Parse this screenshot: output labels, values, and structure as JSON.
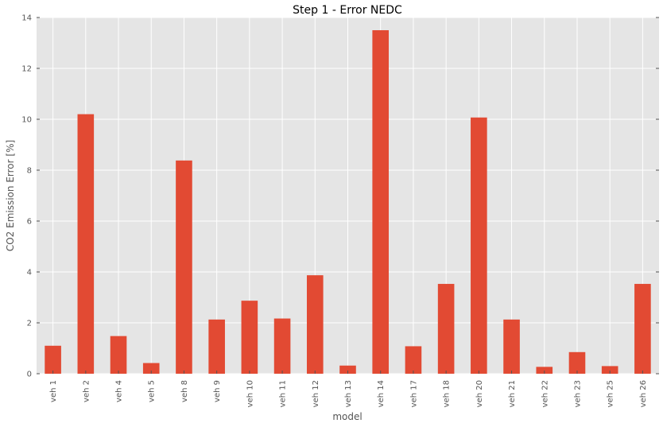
{
  "chart_data": {
    "type": "bar",
    "title": "Step 1 - Error NEDC",
    "xlabel": "model",
    "ylabel": "CO2 Emission Error [%]",
    "categories": [
      "veh 1",
      "veh 2",
      "veh 4",
      "veh 5",
      "veh 8",
      "veh 9",
      "veh 10",
      "veh 11",
      "veh 12",
      "veh 13",
      "veh 14",
      "veh 17",
      "veh 18",
      "veh 20",
      "veh 21",
      "veh 22",
      "veh 23",
      "veh 25",
      "veh 26"
    ],
    "values": [
      1.1,
      10.2,
      1.48,
      0.42,
      8.38,
      2.13,
      2.87,
      2.17,
      3.87,
      0.32,
      13.5,
      1.08,
      3.53,
      10.07,
      2.13,
      0.27,
      0.85,
      0.3,
      3.53
    ],
    "ylim": [
      0,
      14
    ],
    "yticks": [
      0,
      2,
      4,
      6,
      8,
      10,
      12,
      14
    ],
    "grid": true,
    "legend": "none",
    "colors": {
      "bar": "#E24A33",
      "background": "#E5E5E5",
      "grid": "#FFFFFF"
    }
  }
}
